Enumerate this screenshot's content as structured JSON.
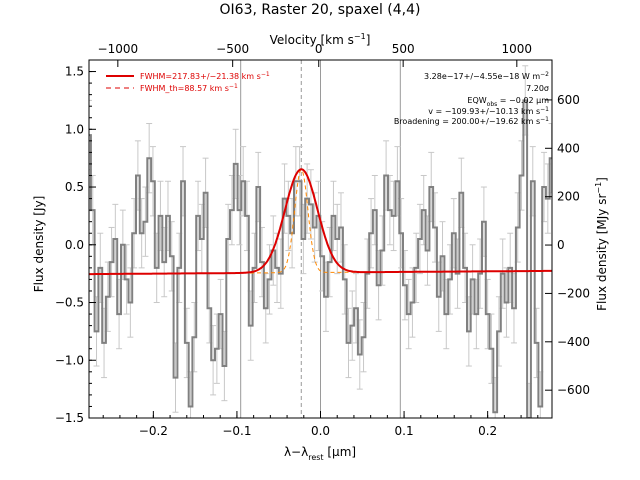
{
  "chart_data": {
    "type": "line",
    "title": "OI63, Raster 20, spaxel (4,4)",
    "xlabel_main": "λ−λ",
    "xlabel_sub": "rest",
    "xlabel_unit": "[μm]",
    "ylabel_left": "Flux density [Jy]",
    "ylabel_right": "Flux density [MJy sr",
    "ylabel_right_sup": "−1",
    "ylabel_right_end": "]",
    "top_axis_label": "Velocity [km s",
    "top_axis_label_sup": "−1",
    "top_axis_label_end": "]",
    "xlim": [
      -0.277,
      0.277
    ],
    "ylim": [
      -1.5,
      1.6
    ],
    "right_ylim": [
      -715,
      765
    ],
    "x_ticks": [
      -0.2,
      -0.1,
      0.0,
      0.1,
      0.2
    ],
    "x_tick_labels": [
      "−0.2",
      "−0.1",
      "0.0",
      "0.1",
      "0.2"
    ],
    "y_ticks": [
      -1.5,
      -1.0,
      -0.5,
      0.0,
      0.5,
      1.0,
      1.5
    ],
    "y_tick_labels": [
      "−1.5",
      "−1.0",
      "−0.5",
      "0.0",
      "0.5",
      "1.0",
      "1.5"
    ],
    "right_ticks": [
      -600,
      -400,
      -200,
      0,
      200,
      400,
      600
    ],
    "right_tick_labels": [
      "−600",
      "−400",
      "−200",
      "0",
      "200",
      "400",
      "600"
    ],
    "top_ticks_um": [
      -0.2425,
      -0.1051,
      -0.0021,
      0.0989,
      0.2349
    ],
    "top_tick_labels": [
      "−1000",
      "−500",
      "0",
      "500",
      "1000"
    ],
    "vertical_lines": [
      -0.0955,
      0.0955
    ],
    "line_center": -0.023,
    "legend": [
      {
        "label": "FWHM=217.83+/−21.38 km s",
        "sup": "−1",
        "style": "solid",
        "color": "#dd0000"
      },
      {
        "label": "FWHM_th=88.57 km s",
        "sup": "−1",
        "style": "dashed",
        "color": "#dd0000"
      }
    ],
    "annotations": [
      "3.28e−17+/−4.55e−18 W m",
      "7.20σ",
      "EQW",
      "v = −109.93+/−10.13 km s",
      "Broadening = 200.00+/−19.62 km s"
    ],
    "annotation_details": {
      "flux_sup": "−2",
      "eqw_sub": "obs",
      "eqw_value": " = −0.02 μm",
      "v_sup": "−1",
      "broadening_sup": "−1"
    },
    "fit": {
      "continuum": -0.24,
      "slope": 0.05,
      "amplitude": 0.895,
      "fwhm_um": 0.0459,
      "theoretical_fwhm_um": 0.0187
    },
    "series": [
      {
        "name": "data",
        "color": "#808080",
        "x": [
          -0.277,
          -0.2725,
          -0.268,
          -0.2635,
          -0.259,
          -0.2545,
          -0.25,
          -0.2455,
          -0.241,
          -0.2365,
          -0.232,
          -0.2275,
          -0.223,
          -0.2185,
          -0.214,
          -0.2095,
          -0.205,
          -0.2005,
          -0.196,
          -0.1915,
          -0.187,
          -0.1825,
          -0.178,
          -0.1735,
          -0.169,
          -0.1645,
          -0.16,
          -0.1555,
          -0.151,
          -0.1465,
          -0.142,
          -0.1375,
          -0.133,
          -0.1285,
          -0.124,
          -0.1195,
          -0.115,
          -0.1105,
          -0.106,
          -0.1015,
          -0.097,
          -0.0925,
          -0.088,
          -0.0835,
          -0.079,
          -0.0745,
          -0.07,
          -0.0655,
          -0.061,
          -0.0565,
          -0.052,
          -0.0475,
          -0.043,
          -0.0385,
          -0.034,
          -0.0295,
          -0.025,
          -0.0205,
          -0.016,
          -0.0115,
          -0.007,
          -0.0025,
          0.002,
          0.0065,
          0.011,
          0.0155,
          0.02,
          0.0245,
          0.029,
          0.0335,
          0.038,
          0.0425,
          0.047,
          0.0515,
          0.056,
          0.0605,
          0.065,
          0.0695,
          0.074,
          0.0785,
          0.083,
          0.0875,
          0.092,
          0.0965,
          0.101,
          0.1055,
          0.11,
          0.1145,
          0.119,
          0.1235,
          0.128,
          0.1325,
          0.137,
          0.1415,
          0.146,
          0.1505,
          0.155,
          0.1595,
          0.164,
          0.1685,
          0.173,
          0.1775,
          0.182,
          0.1865,
          0.191,
          0.1955,
          0.2,
          0.2045,
          0.209,
          0.2135,
          0.218,
          0.2225,
          0.227,
          0.2315,
          0.236,
          0.2405,
          0.245,
          0.2495,
          0.254,
          0.2585,
          0.263,
          0.2675,
          0.272,
          0.2765
        ],
        "y": [
          0.95,
          0.3,
          -0.75,
          -0.2,
          -0.85,
          -0.45,
          -0.15,
          0.05,
          -0.6,
          0.0,
          -0.3,
          -0.5,
          0.1,
          0.6,
          0.1,
          0.2,
          0.75,
          0.55,
          -0.2,
          0.25,
          -0.15,
          0.25,
          -0.1,
          -1.15,
          -0.2,
          0.55,
          -0.85,
          -1.4,
          -0.8,
          0.25,
          0.05,
          0.45,
          -0.55,
          -1.0,
          -0.9,
          -0.6,
          -1.05,
          0.05,
          0.3,
          0.7,
          0.3,
          0.55,
          0.25,
          -0.7,
          -0.2,
          0.5,
          -0.15,
          -0.55,
          -0.3,
          -0.05,
          -0.2,
          -0.25,
          0.4,
          0.25,
          0.1,
          0.55,
          0.55,
          0.05,
          0.4,
          0.35,
          0.15,
          0.25,
          -0.1,
          -0.45,
          -0.15,
          0.25,
          0.05,
          0.15,
          -0.3,
          -0.85,
          -0.7,
          -0.55,
          -0.95,
          -0.8,
          -0.25,
          0.1,
          0.3,
          -0.35,
          -0.05,
          0.6,
          0.3,
          0.25,
          0.55,
          0.1,
          -0.35,
          -0.6,
          -0.5,
          -0.2,
          0.05,
          0.3,
          -0.05,
          0.5,
          0.15,
          -0.45,
          -0.1,
          -0.6,
          -0.3,
          0.1,
          -0.25,
          0.45,
          -0.2,
          -0.75,
          -0.3,
          -0.6,
          -0.25,
          0.2,
          -0.6,
          -0.9,
          -1.45,
          -0.75,
          -0.25,
          -0.5,
          -0.2,
          -0.55,
          0.15,
          0.6,
          1.25,
          -1.5,
          0.55,
          -0.85,
          -1.4,
          0.5,
          0.4,
          0.75
        ],
        "err": 0.3
      }
    ]
  }
}
